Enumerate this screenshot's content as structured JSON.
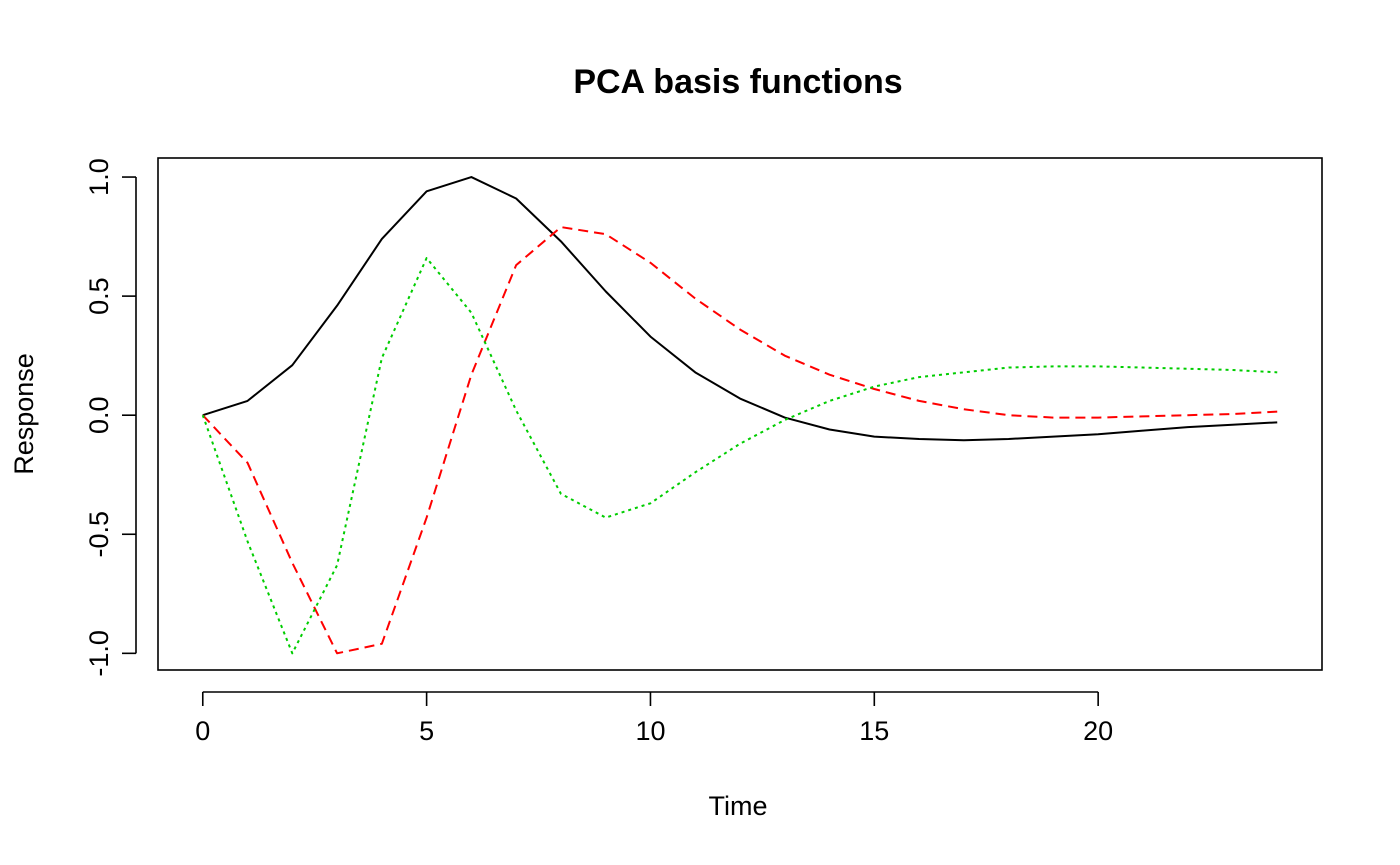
{
  "chart_data": {
    "type": "line",
    "title": "PCA basis functions",
    "xlabel": "Time",
    "ylabel": "Response",
    "xlim": [
      -1,
      25
    ],
    "ylim": [
      -1.07,
      1.08
    ],
    "x_ticks": [
      0,
      5,
      10,
      15,
      20
    ],
    "x_tick_labels": [
      "0",
      "5",
      "10",
      "15",
      "20"
    ],
    "y_ticks": [
      -1.0,
      -0.5,
      0.0,
      0.5,
      1.0
    ],
    "y_tick_labels": [
      "-1.0",
      "-0.5",
      "0.0",
      "0.5",
      "1.0"
    ],
    "grid": false,
    "legend": "none",
    "x": [
      0,
      1,
      2,
      3,
      4,
      5,
      6,
      7,
      8,
      9,
      10,
      11,
      12,
      13,
      14,
      15,
      16,
      17,
      18,
      19,
      20,
      21,
      22,
      23,
      24
    ],
    "series": [
      {
        "color": "#000000",
        "dash": "solid",
        "values": [
          0.0,
          0.06,
          0.21,
          0.46,
          0.74,
          0.94,
          1.0,
          0.91,
          0.73,
          0.52,
          0.33,
          0.18,
          0.07,
          -0.01,
          -0.06,
          -0.09,
          -0.1,
          -0.105,
          -0.1,
          -0.09,
          -0.08,
          -0.065,
          -0.05,
          -0.04,
          -0.03
        ]
      },
      {
        "color": "#ff0000",
        "dash": "dashed",
        "values": [
          0.0,
          -0.2,
          -0.62,
          -1.0,
          -0.96,
          -0.43,
          0.17,
          0.63,
          0.79,
          0.76,
          0.64,
          0.49,
          0.36,
          0.25,
          0.17,
          0.11,
          0.06,
          0.025,
          0.0,
          -0.01,
          -0.01,
          -0.005,
          0.0,
          0.005,
          0.015
        ]
      },
      {
        "color": "#00cd00",
        "dash": "dotted",
        "values": [
          0.0,
          -0.53,
          -1.0,
          -0.63,
          0.24,
          0.66,
          0.43,
          0.02,
          -0.33,
          -0.43,
          -0.37,
          -0.24,
          -0.12,
          -0.02,
          0.06,
          0.12,
          0.16,
          0.18,
          0.2,
          0.205,
          0.205,
          0.2,
          0.195,
          0.19,
          0.18
        ]
      }
    ]
  }
}
